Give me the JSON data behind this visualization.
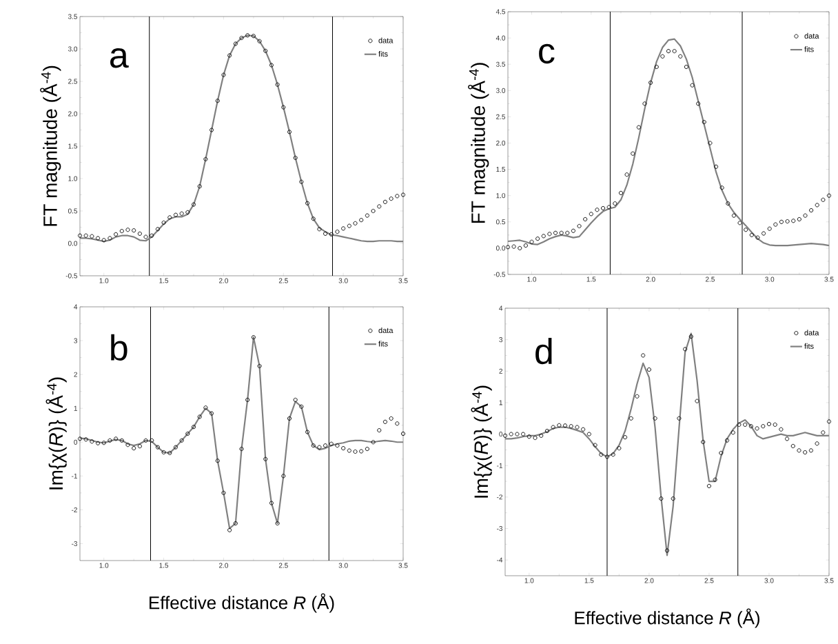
{
  "chart_data": [
    {
      "type": "line",
      "annotations": [
        "a"
      ],
      "ylabel": "FT magnitude (Å$^{-4}$)",
      "legend": "top right",
      "x": [
        0.8,
        0.85,
        0.9,
        0.95,
        1.0,
        1.05,
        1.1,
        1.15,
        1.2,
        1.25,
        1.3,
        1.35,
        1.4,
        1.45,
        1.5,
        1.55,
        1.6,
        1.65,
        1.7,
        1.75,
        1.8,
        1.85,
        1.9,
        1.95,
        2.0,
        2.05,
        2.1,
        2.15,
        2.2,
        2.25,
        2.3,
        2.35,
        2.4,
        2.45,
        2.5,
        2.55,
        2.6,
        2.65,
        2.7,
        2.75,
        2.8,
        2.85,
        2.9,
        2.95,
        3.0,
        3.05,
        3.1,
        3.15,
        3.2,
        3.25,
        3.3,
        3.35,
        3.4,
        3.45,
        3.5
      ],
      "series": [
        {
          "name": "data",
          "type": "scatter",
          "marker": "circle",
          "color": "#000000",
          "values": [
            0.12,
            0.12,
            0.11,
            0.08,
            0.05,
            0.08,
            0.14,
            0.19,
            0.21,
            0.2,
            0.15,
            0.1,
            0.12,
            0.22,
            0.32,
            0.4,
            0.44,
            0.46,
            0.48,
            0.6,
            0.88,
            1.3,
            1.75,
            2.2,
            2.6,
            2.9,
            3.08,
            3.17,
            3.21,
            3.2,
            3.12,
            2.97,
            2.75,
            2.45,
            2.1,
            1.72,
            1.32,
            0.95,
            0.62,
            0.38,
            0.22,
            0.15,
            0.14,
            0.18,
            0.23,
            0.27,
            0.31,
            0.36,
            0.43,
            0.5,
            0.57,
            0.64,
            0.69,
            0.73,
            0.75
          ]
        },
        {
          "name": "fits",
          "type": "line",
          "marker": "none",
          "color": "#808080",
          "values": [
            0.08,
            0.08,
            0.07,
            0.05,
            0.03,
            0.05,
            0.1,
            0.12,
            0.12,
            0.1,
            0.05,
            0.04,
            0.1,
            0.2,
            0.3,
            0.38,
            0.41,
            0.41,
            0.45,
            0.6,
            0.88,
            1.3,
            1.75,
            2.2,
            2.6,
            2.9,
            3.08,
            3.17,
            3.21,
            3.2,
            3.12,
            2.97,
            2.75,
            2.45,
            2.1,
            1.72,
            1.32,
            0.95,
            0.62,
            0.38,
            0.24,
            0.18,
            0.13,
            0.12,
            0.1,
            0.08,
            0.06,
            0.04,
            0.03,
            0.03,
            0.04,
            0.04,
            0.04,
            0.03,
            0.03
          ]
        }
      ],
      "xlim": [
        0.8,
        3.5
      ],
      "xticks": [
        {
          "value": 1.0,
          "label": "1.0"
        },
        {
          "value": 1.5,
          "label": "1.5"
        },
        {
          "value": 2.0,
          "label": "2.0"
        },
        {
          "value": 2.5,
          "label": "2.5"
        },
        {
          "value": 3.0,
          "label": "3.0"
        },
        {
          "value": 3.5,
          "label": "3.5"
        }
      ],
      "ylim": [
        -0.5,
        3.5
      ],
      "yticks": [
        {
          "value": -0.5,
          "label": "-0.5"
        },
        {
          "value": 0,
          "label": "0.0"
        },
        {
          "value": 0.5,
          "label": "0.5"
        },
        {
          "value": 1.0,
          "label": "1.0"
        },
        {
          "value": 1.5,
          "label": "1.5"
        },
        {
          "value": 2.0,
          "label": "2.0"
        },
        {
          "value": 2.5,
          "label": "2.5"
        },
        {
          "value": 3.0,
          "label": "3.0"
        },
        {
          "value": 3.5,
          "label": "3.5"
        }
      ],
      "ref_lines": [
        {
          "axis": "x",
          "value": 1.38,
          "color": "#000000"
        },
        {
          "axis": "x",
          "value": 2.91,
          "color": "#000000"
        }
      ]
    },
    {
      "type": "line",
      "annotations": [
        "c"
      ],
      "ylabel": "FT magnitude (Å$^{-4}$)",
      "legend": "top right",
      "x": [
        0.8,
        0.85,
        0.9,
        0.95,
        1.0,
        1.05,
        1.1,
        1.15,
        1.2,
        1.25,
        1.3,
        1.35,
        1.4,
        1.45,
        1.5,
        1.55,
        1.6,
        1.65,
        1.7,
        1.75,
        1.8,
        1.85,
        1.9,
        1.95,
        2.0,
        2.05,
        2.1,
        2.15,
        2.2,
        2.25,
        2.3,
        2.35,
        2.4,
        2.45,
        2.5,
        2.55,
        2.6,
        2.65,
        2.7,
        2.75,
        2.8,
        2.85,
        2.9,
        2.95,
        3.0,
        3.05,
        3.1,
        3.15,
        3.2,
        3.25,
        3.3,
        3.35,
        3.4,
        3.45,
        3.5
      ],
      "series": [
        {
          "name": "data",
          "type": "scatter",
          "marker": "circle",
          "color": "#000000",
          "values": [
            0.02,
            0.03,
            0.0,
            0.05,
            0.12,
            0.18,
            0.23,
            0.27,
            0.29,
            0.29,
            0.29,
            0.33,
            0.42,
            0.55,
            0.65,
            0.73,
            0.76,
            0.78,
            0.85,
            1.05,
            1.4,
            1.8,
            2.3,
            2.75,
            3.15,
            3.45,
            3.65,
            3.75,
            3.75,
            3.65,
            3.45,
            3.1,
            2.75,
            2.4,
            2.0,
            1.55,
            1.15,
            0.85,
            0.62,
            0.48,
            0.35,
            0.25,
            0.2,
            0.28,
            0.37,
            0.45,
            0.5,
            0.51,
            0.52,
            0.55,
            0.62,
            0.72,
            0.82,
            0.92,
            1.0
          ]
        },
        {
          "name": "fits",
          "type": "line",
          "marker": "none",
          "color": "#808080",
          "values": [
            0.13,
            0.14,
            0.15,
            0.12,
            0.08,
            0.07,
            0.12,
            0.18,
            0.22,
            0.25,
            0.23,
            0.2,
            0.22,
            0.35,
            0.48,
            0.6,
            0.7,
            0.75,
            0.78,
            0.92,
            1.2,
            1.6,
            2.1,
            2.65,
            3.15,
            3.55,
            3.82,
            3.96,
            3.98,
            3.85,
            3.6,
            3.25,
            2.8,
            2.35,
            1.9,
            1.45,
            1.1,
            0.85,
            0.68,
            0.55,
            0.43,
            0.3,
            0.18,
            0.1,
            0.06,
            0.05,
            0.05,
            0.05,
            0.06,
            0.07,
            0.08,
            0.09,
            0.08,
            0.07,
            0.05
          ]
        }
      ],
      "xlim": [
        0.8,
        3.5
      ],
      "xticks": [
        {
          "value": 1.0,
          "label": "1.0"
        },
        {
          "value": 1.5,
          "label": "1.5"
        },
        {
          "value": 2.0,
          "label": "2.0"
        },
        {
          "value": 2.5,
          "label": "2.5"
        },
        {
          "value": 3.0,
          "label": "3.0"
        },
        {
          "value": 3.5,
          "label": "3.5"
        }
      ],
      "ylim": [
        -0.5,
        4.5
      ],
      "yticks": [
        {
          "value": -0.5,
          "label": "-0.5"
        },
        {
          "value": 0,
          "label": "0.0"
        },
        {
          "value": 0.5,
          "label": "0.5"
        },
        {
          "value": 1.0,
          "label": "1.0"
        },
        {
          "value": 1.5,
          "label": "1.5"
        },
        {
          "value": 2.0,
          "label": "2.0"
        },
        {
          "value": 2.5,
          "label": "2.5"
        },
        {
          "value": 3.0,
          "label": "3.0"
        },
        {
          "value": 3.5,
          "label": "3.5"
        },
        {
          "value": 4.0,
          "label": "4.0"
        },
        {
          "value": 4.5,
          "label": "4.5"
        }
      ],
      "ref_lines": [
        {
          "axis": "x",
          "value": 1.66,
          "color": "#000000"
        },
        {
          "axis": "x",
          "value": 2.77,
          "color": "#000000"
        }
      ]
    },
    {
      "type": "line",
      "annotations": [
        "b"
      ],
      "ylabel": "Im{χ(*R*)} (Å$^{-4}$)",
      "xlabel": "Effective distance *R* (Å)",
      "legend": "top right",
      "x": [
        0.8,
        0.85,
        0.9,
        0.95,
        1.0,
        1.05,
        1.1,
        1.15,
        1.2,
        1.25,
        1.3,
        1.35,
        1.4,
        1.45,
        1.5,
        1.55,
        1.6,
        1.65,
        1.7,
        1.75,
        1.8,
        1.85,
        1.9,
        1.95,
        2.0,
        2.05,
        2.1,
        2.15,
        2.2,
        2.25,
        2.3,
        2.35,
        2.4,
        2.45,
        2.5,
        2.55,
        2.6,
        2.65,
        2.7,
        2.75,
        2.8,
        2.85,
        2.9,
        2.95,
        3.0,
        3.05,
        3.1,
        3.15,
        3.2,
        3.25,
        3.3,
        3.35,
        3.4,
        3.45,
        3.5
      ],
      "series": [
        {
          "name": "data",
          "type": "scatter",
          "marker": "circle",
          "color": "#000000",
          "values": [
            0.1,
            0.08,
            0.02,
            -0.03,
            -0.02,
            0.05,
            0.1,
            0.05,
            -0.08,
            -0.18,
            -0.12,
            0.05,
            0.05,
            -0.15,
            -0.3,
            -0.32,
            -0.15,
            0.05,
            0.25,
            0.45,
            0.75,
            1.02,
            0.85,
            -0.55,
            -1.5,
            -2.6,
            -2.4,
            -0.2,
            1.25,
            3.1,
            2.25,
            -0.5,
            -1.8,
            -2.4,
            -1.0,
            0.7,
            1.25,
            1.05,
            0.3,
            -0.1,
            -0.15,
            -0.1,
            -0.05,
            -0.1,
            -0.18,
            -0.25,
            -0.28,
            -0.27,
            -0.2,
            0.0,
            0.35,
            0.6,
            0.7,
            0.55,
            0.25
          ]
        },
        {
          "name": "fits",
          "type": "line",
          "marker": "none",
          "color": "#808080",
          "values": [
            0.12,
            0.1,
            0.05,
            0.0,
            -0.02,
            0.03,
            0.08,
            0.05,
            -0.05,
            -0.1,
            -0.05,
            0.05,
            0.02,
            -0.15,
            -0.3,
            -0.32,
            -0.15,
            0.05,
            0.25,
            0.45,
            0.75,
            1.0,
            0.85,
            -0.55,
            -1.5,
            -2.55,
            -2.4,
            -0.2,
            1.25,
            3.1,
            2.25,
            -0.5,
            -1.8,
            -2.4,
            -1.0,
            0.7,
            1.2,
            1.05,
            0.3,
            -0.1,
            -0.22,
            -0.18,
            -0.1,
            -0.05,
            -0.02,
            0.03,
            0.05,
            0.05,
            0.02,
            0.0,
            0.03,
            0.05,
            0.03,
            0.0,
            0.0
          ]
        }
      ],
      "xlim": [
        0.8,
        3.5
      ],
      "xticks": [
        {
          "value": 1.0,
          "label": "1.0"
        },
        {
          "value": 1.5,
          "label": "1.5"
        },
        {
          "value": 2.0,
          "label": "2.0"
        },
        {
          "value": 2.5,
          "label": "2.5"
        },
        {
          "value": 3.0,
          "label": "3.0"
        },
        {
          "value": 3.5,
          "label": "3.5"
        }
      ],
      "ylim": [
        -3.5,
        4
      ],
      "yticks": [
        -3,
        -2,
        -1,
        0,
        1,
        2,
        3,
        4
      ],
      "ref_lines": [
        {
          "axis": "x",
          "value": 1.39,
          "color": "#000000"
        },
        {
          "axis": "x",
          "value": 2.88,
          "color": "#000000"
        }
      ]
    },
    {
      "type": "line",
      "annotations": [
        "d"
      ],
      "ylabel": "Im{χ(*R*)} (Å$^{-4}$)",
      "xlabel": "Effective distance *R* (Å)",
      "legend": "top right",
      "x": [
        0.8,
        0.85,
        0.9,
        0.95,
        1.0,
        1.05,
        1.1,
        1.15,
        1.2,
        1.25,
        1.3,
        1.35,
        1.4,
        1.45,
        1.5,
        1.55,
        1.6,
        1.65,
        1.7,
        1.75,
        1.8,
        1.85,
        1.9,
        1.95,
        2.0,
        2.05,
        2.1,
        2.15,
        2.2,
        2.25,
        2.3,
        2.35,
        2.4,
        2.45,
        2.5,
        2.55,
        2.6,
        2.65,
        2.7,
        2.75,
        2.8,
        2.85,
        2.9,
        2.95,
        3.0,
        3.05,
        3.1,
        3.15,
        3.2,
        3.25,
        3.3,
        3.35,
        3.4,
        3.45,
        3.5
      ],
      "series": [
        {
          "name": "data",
          "type": "scatter",
          "marker": "circle",
          "color": "#000000",
          "values": [
            -0.05,
            0.0,
            0.0,
            0.0,
            -0.08,
            -0.12,
            -0.05,
            0.1,
            0.22,
            0.28,
            0.27,
            0.25,
            0.22,
            0.15,
            0.0,
            -0.35,
            -0.65,
            -0.72,
            -0.65,
            -0.45,
            -0.1,
            0.5,
            1.2,
            2.5,
            2.05,
            0.5,
            -2.05,
            -3.7,
            -2.05,
            0.5,
            2.7,
            3.1,
            1.05,
            -0.25,
            -1.65,
            -1.45,
            -0.6,
            -0.2,
            0.05,
            0.3,
            0.3,
            0.25,
            0.18,
            0.25,
            0.32,
            0.3,
            0.15,
            -0.15,
            -0.38,
            -0.52,
            -0.58,
            -0.52,
            -0.3,
            0.05,
            0.4
          ]
        },
        {
          "name": "fits",
          "type": "line",
          "marker": "none",
          "color": "#808080",
          "values": [
            -0.15,
            -0.15,
            -0.12,
            -0.08,
            -0.05,
            -0.05,
            0.0,
            0.08,
            0.18,
            0.22,
            0.22,
            0.18,
            0.12,
            0.05,
            -0.15,
            -0.4,
            -0.62,
            -0.72,
            -0.62,
            -0.35,
            0.1,
            0.8,
            1.6,
            2.25,
            1.8,
            0.2,
            -2.0,
            -3.85,
            -2.3,
            0.2,
            2.6,
            3.2,
            1.7,
            -0.2,
            -1.5,
            -1.5,
            -0.7,
            -0.15,
            0.15,
            0.35,
            0.45,
            0.25,
            -0.05,
            -0.15,
            -0.1,
            -0.05,
            0.0,
            -0.05,
            -0.05,
            0.0,
            0.05,
            0.0,
            -0.05,
            -0.05,
            -0.05
          ]
        }
      ],
      "xlim": [
        0.8,
        3.5
      ],
      "xticks": [
        {
          "value": 1.0,
          "label": "1.0"
        },
        {
          "value": 1.5,
          "label": "1.5"
        },
        {
          "value": 2.0,
          "label": "2.0"
        },
        {
          "value": 2.5,
          "label": "2.5"
        },
        {
          "value": 3.0,
          "label": "3.0"
        },
        {
          "value": 3.5,
          "label": "3.5"
        }
      ],
      "ylim": [
        -4.5,
        4
      ],
      "yticks": [
        -4,
        -3,
        -2,
        -1,
        0,
        1,
        2,
        3,
        4
      ],
      "ref_lines": [
        {
          "axis": "x",
          "value": 1.65,
          "color": "#000000"
        },
        {
          "axis": "x",
          "value": 2.74,
          "color": "#000000"
        }
      ]
    }
  ]
}
